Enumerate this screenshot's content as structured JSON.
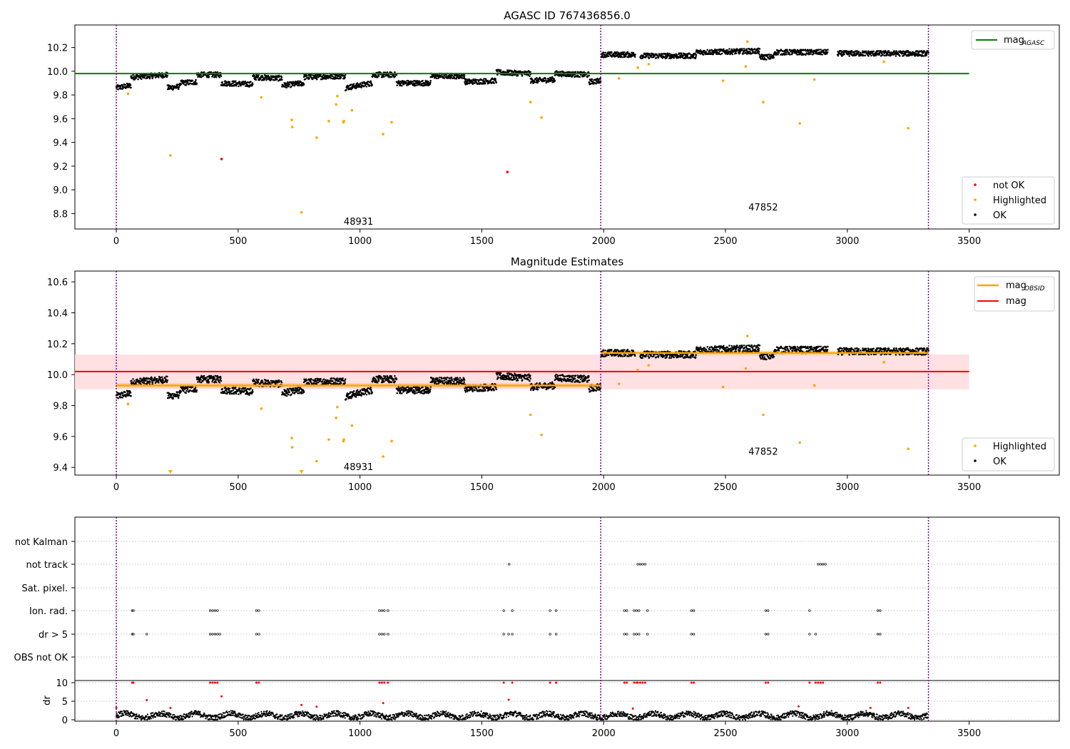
{
  "chart_data": [
    {
      "type": "scatter",
      "title": "AGASC ID 767436856.0",
      "xlabel": "",
      "ylabel": "",
      "xlim": [
        -170,
        3870
      ],
      "ylim": [
        8.67,
        10.39
      ],
      "x_ticks": [
        "0",
        "500",
        "1000",
        "1500",
        "2000",
        "2500",
        "3000",
        "3500"
      ],
      "x_tick_values": [
        0,
        500,
        1000,
        1500,
        2000,
        2500,
        3000,
        3500
      ],
      "y_ticks": [
        "8.8",
        "9.0",
        "9.2",
        "9.4",
        "9.6",
        "9.8",
        "10.0",
        "10.2"
      ],
      "y_tick_values": [
        8.8,
        9.0,
        9.2,
        9.4,
        9.6,
        9.8,
        10.0,
        10.2
      ],
      "obs_boundaries": [
        0,
        1988,
        3333
      ],
      "obs_labels": [
        {
          "text": "48931",
          "x": 994,
          "y": 8.73
        },
        {
          "text": "47852",
          "x": 2655,
          "y": 8.85
        }
      ],
      "lines": [
        {
          "name": "mag_AGASC",
          "color": "#008000",
          "x": [
            -170,
            3500
          ],
          "y": [
            9.98,
            9.98
          ]
        }
      ],
      "ok_segments": [
        {
          "x": [
            0,
            60
          ],
          "y": [
            9.86,
            9.88
          ]
        },
        {
          "x": [
            60,
            210
          ],
          "y": [
            9.95,
            9.97
          ]
        },
        {
          "x": [
            210,
            260
          ],
          "y": [
            9.86,
            9.87
          ]
        },
        {
          "x": [
            260,
            330
          ],
          "y": [
            9.9,
            9.91
          ]
        },
        {
          "x": [
            330,
            430
          ],
          "y": [
            9.97,
            9.97
          ]
        },
        {
          "x": [
            430,
            560
          ],
          "y": [
            9.9,
            9.89
          ]
        },
        {
          "x": [
            560,
            680
          ],
          "y": [
            9.95,
            9.94
          ]
        },
        {
          "x": [
            680,
            770
          ],
          "y": [
            9.88,
            9.9
          ]
        },
        {
          "x": [
            770,
            940
          ],
          "y": [
            9.95,
            9.96
          ]
        },
        {
          "x": [
            940,
            1050
          ],
          "y": [
            9.86,
            9.9
          ]
        },
        {
          "x": [
            1050,
            1150
          ],
          "y": [
            9.97,
            9.97
          ]
        },
        {
          "x": [
            1150,
            1290
          ],
          "y": [
            9.9,
            9.9
          ]
        },
        {
          "x": [
            1290,
            1430
          ],
          "y": [
            9.96,
            9.96
          ]
        },
        {
          "x": [
            1430,
            1560
          ],
          "y": [
            9.91,
            9.92
          ]
        },
        {
          "x": [
            1560,
            1700
          ],
          "y": [
            9.99,
            9.98
          ]
        },
        {
          "x": [
            1700,
            1800
          ],
          "y": [
            9.92,
            9.93
          ]
        },
        {
          "x": [
            1800,
            1940
          ],
          "y": [
            9.98,
            9.97
          ]
        },
        {
          "x": [
            1940,
            1988
          ],
          "y": [
            9.91,
            9.92
          ]
        },
        {
          "x": [
            1990,
            2130
          ],
          "y": [
            10.14,
            10.14
          ]
        },
        {
          "x": [
            2150,
            2380
          ],
          "y": [
            10.13,
            10.13
          ]
        },
        {
          "x": [
            2380,
            2640
          ],
          "y": [
            10.16,
            10.17
          ]
        },
        {
          "x": [
            2640,
            2700
          ],
          "y": [
            10.12,
            10.12
          ]
        },
        {
          "x": [
            2700,
            2920
          ],
          "y": [
            10.16,
            10.16
          ]
        },
        {
          "x": [
            2960,
            3333
          ],
          "y": [
            10.15,
            10.15
          ]
        }
      ],
      "highlighted": {
        "color": "#ffa500",
        "x": [
          48,
          222,
          595,
          720,
          722,
          760,
          822,
          872,
          902,
          907,
          932,
          934,
          967,
          1095,
          1130,
          1700,
          1745,
          2063,
          2140,
          2185,
          2490,
          2583,
          2590,
          2655,
          2805,
          2865,
          3150,
          3250
        ],
        "y": [
          9.81,
          9.29,
          9.78,
          9.59,
          9.53,
          8.81,
          9.44,
          9.58,
          9.72,
          9.79,
          9.57,
          9.58,
          9.67,
          9.47,
          9.57,
          9.74,
          9.61,
          9.94,
          10.03,
          10.06,
          9.92,
          10.04,
          10.25,
          9.74,
          9.56,
          9.93,
          10.08,
          9.52
        ]
      },
      "not_ok": {
        "color": "#ff0000",
        "x": [
          432,
          1605
        ],
        "y": [
          9.26,
          9.15
        ]
      },
      "legend": {
        "placement": "upper-right",
        "label_html": "mag",
        "label_sub": "AGASC"
      },
      "legend2": {
        "placement": "lower-right",
        "entries": [
          "not OK",
          "Highlighted",
          "OK"
        ]
      },
      "grid": false
    },
    {
      "type": "scatter",
      "title": "Magnitude Estimates",
      "xlim": [
        -170,
        3870
      ],
      "ylim": [
        9.35,
        10.67
      ],
      "x_ticks": [
        "0",
        "500",
        "1000",
        "1500",
        "2000",
        "2500",
        "3000",
        "3500"
      ],
      "x_tick_values": [
        0,
        500,
        1000,
        1500,
        2000,
        2500,
        3000,
        3500
      ],
      "y_ticks": [
        "9.4",
        "9.6",
        "9.8",
        "10.0",
        "10.2",
        "10.4",
        "10.6"
      ],
      "y_tick_values": [
        9.4,
        9.6,
        9.8,
        10.0,
        10.2,
        10.4,
        10.6
      ],
      "obs_boundaries": [
        0,
        1988,
        3333
      ],
      "obs_labels": [
        {
          "text": "48931",
          "x": 994,
          "y": 9.4
        },
        {
          "text": "47852",
          "x": 2655,
          "y": 9.5
        }
      ],
      "mag_band": {
        "x": [
          -170,
          3500
        ],
        "low": 9.905,
        "high": 10.13,
        "color": "#ffdde0"
      },
      "lines": [
        {
          "name": "mag",
          "color": "#ff0000",
          "x": [
            -170,
            3500
          ],
          "y": [
            10.02,
            10.02
          ]
        },
        {
          "name": "mag_OBSID",
          "color": "#ffa500",
          "x": [
            0,
            1988
          ],
          "y": [
            9.93,
            9.93
          ]
        },
        {
          "name": "mag_OBSID",
          "color": "#ffa500",
          "x": [
            1990,
            3333
          ],
          "y": [
            10.14,
            10.14
          ]
        }
      ],
      "obsid_bands": [
        {
          "x": [
            0,
            1988
          ],
          "low": 9.915,
          "high": 9.945
        },
        {
          "x": [
            1990,
            3333
          ],
          "low": 10.125,
          "high": 10.155
        }
      ],
      "ok_segments": [
        {
          "x": [
            0,
            60
          ],
          "y": [
            9.86,
            9.88
          ]
        },
        {
          "x": [
            60,
            210
          ],
          "y": [
            9.95,
            9.97
          ]
        },
        {
          "x": [
            210,
            260
          ],
          "y": [
            9.86,
            9.87
          ]
        },
        {
          "x": [
            260,
            330
          ],
          "y": [
            9.9,
            9.91
          ]
        },
        {
          "x": [
            330,
            430
          ],
          "y": [
            9.97,
            9.97
          ]
        },
        {
          "x": [
            430,
            560
          ],
          "y": [
            9.9,
            9.89
          ]
        },
        {
          "x": [
            560,
            680
          ],
          "y": [
            9.95,
            9.94
          ]
        },
        {
          "x": [
            680,
            770
          ],
          "y": [
            9.88,
            9.9
          ]
        },
        {
          "x": [
            770,
            940
          ],
          "y": [
            9.95,
            9.96
          ]
        },
        {
          "x": [
            940,
            1050
          ],
          "y": [
            9.86,
            9.9
          ]
        },
        {
          "x": [
            1050,
            1150
          ],
          "y": [
            9.97,
            9.97
          ]
        },
        {
          "x": [
            1150,
            1290
          ],
          "y": [
            9.9,
            9.9
          ]
        },
        {
          "x": [
            1290,
            1430
          ],
          "y": [
            9.96,
            9.96
          ]
        },
        {
          "x": [
            1430,
            1560
          ],
          "y": [
            9.91,
            9.92
          ]
        },
        {
          "x": [
            1560,
            1700
          ],
          "y": [
            9.99,
            9.98
          ]
        },
        {
          "x": [
            1700,
            1800
          ],
          "y": [
            9.92,
            9.93
          ]
        },
        {
          "x": [
            1800,
            1940
          ],
          "y": [
            9.98,
            9.97
          ]
        },
        {
          "x": [
            1940,
            1988
          ],
          "y": [
            9.91,
            9.92
          ]
        },
        {
          "x": [
            1990,
            2130
          ],
          "y": [
            10.14,
            10.14
          ]
        },
        {
          "x": [
            2150,
            2380
          ],
          "y": [
            10.13,
            10.13
          ]
        },
        {
          "x": [
            2380,
            2640
          ],
          "y": [
            10.16,
            10.17
          ]
        },
        {
          "x": [
            2640,
            2700
          ],
          "y": [
            10.12,
            10.12
          ]
        },
        {
          "x": [
            2700,
            2920
          ],
          "y": [
            10.16,
            10.16
          ]
        },
        {
          "x": [
            2960,
            3333
          ],
          "y": [
            10.15,
            10.15
          ]
        }
      ],
      "highlighted": {
        "color": "#ffa500",
        "x": [
          48,
          595,
          720,
          722,
          822,
          872,
          902,
          907,
          932,
          934,
          967,
          1095,
          1130,
          1700,
          1745,
          2063,
          2140,
          2185,
          2490,
          2583,
          2590,
          2655,
          2805,
          2865,
          3150,
          3250
        ],
        "y": [
          9.81,
          9.78,
          9.59,
          9.53,
          9.44,
          9.58,
          9.72,
          9.79,
          9.57,
          9.58,
          9.67,
          9.47,
          9.57,
          9.74,
          9.61,
          9.94,
          10.03,
          10.06,
          9.92,
          10.04,
          10.25,
          9.74,
          9.56,
          9.93,
          10.08,
          9.52
        ]
      },
      "offscale_markers": {
        "color": "#ffa500",
        "x": [
          222,
          760
        ]
      },
      "legend": {
        "placement": "upper-right",
        "entries": [
          {
            "label": "mag",
            "sub": "OBSID",
            "color": "#ffa500"
          },
          {
            "label": "mag",
            "sub": "",
            "color": "#ff0000"
          }
        ]
      },
      "legend2": {
        "placement": "lower-right",
        "entries": [
          "Highlighted",
          "OK"
        ]
      },
      "grid": false
    },
    {
      "type": "scatter",
      "title": "",
      "xlim": [
        -170,
        3870
      ],
      "x_ticks": [
        "0",
        "500",
        "1000",
        "1500",
        "2000",
        "2500",
        "3000",
        "3500"
      ],
      "x_tick_values": [
        0,
        500,
        1000,
        1500,
        2000,
        2500,
        3000,
        3500
      ],
      "flag_rows": [
        "not Kalman",
        "not track",
        "Sat. pixel.",
        "Ion. rad.",
        "dr > 5",
        "OBS not OK"
      ],
      "flag_points": {
        "not track": [
          1612,
          2140,
          2150,
          2160,
          2170,
          2880,
          2890,
          2900,
          2910
        ],
        "Ion. rad.": [
          65,
          70,
          385,
          395,
          405,
          415,
          575,
          585,
          1080,
          1090,
          1100,
          1115,
          1590,
          1625,
          1780,
          1805,
          2085,
          2095,
          2125,
          2135,
          2145,
          2180,
          2360,
          2370,
          2665,
          2675,
          2845,
          3125,
          3135
        ],
        "dr > 5": [
          65,
          70,
          125,
          385,
          395,
          405,
          415,
          425,
          575,
          585,
          1080,
          1090,
          1100,
          1115,
          1590,
          1610,
          1625,
          1780,
          1805,
          2085,
          2095,
          2125,
          2135,
          2145,
          2180,
          2360,
          2370,
          2665,
          2675,
          2845,
          2870,
          3125,
          3135
        ]
      },
      "dr_ylabel": "dr",
      "dr_ticks": [
        "0",
        "5",
        "10"
      ],
      "dr_tick_values": [
        0,
        5,
        10
      ],
      "dr_ylim": [
        -0.5,
        10.5
      ],
      "dr_red": {
        "color": "#ff0000",
        "x": [
          0,
          65,
          70,
          125,
          222,
          385,
          395,
          405,
          415,
          432,
          575,
          585,
          760,
          822,
          1080,
          1090,
          1095,
          1100,
          1115,
          1590,
          1610,
          1625,
          1780,
          1805,
          2085,
          2095,
          2120,
          2125,
          2135,
          2140,
          2150,
          2160,
          2170,
          2360,
          2370,
          2665,
          2675,
          2800,
          2845,
          2870,
          2880,
          2890,
          2900,
          3095,
          3125,
          3135,
          3250
        ],
        "y": [
          3.2,
          10,
          10,
          5.3,
          3.2,
          10,
          10,
          10,
          10,
          6.3,
          10,
          10,
          4.0,
          3.5,
          10,
          10,
          4.5,
          10,
          10,
          10,
          5.4,
          10,
          10,
          10,
          10,
          10,
          3.0,
          10,
          10,
          10,
          10,
          10,
          10,
          10,
          10,
          10,
          10,
          3.6,
          10,
          10,
          10,
          10,
          10,
          3.2,
          10,
          10,
          3.2
        ]
      },
      "dr_black_baseline": {
        "x": [
          0,
          3333
        ],
        "typical": 1.1,
        "spread": 1.5
      },
      "obs_boundaries": [
        0,
        1988,
        3333
      ],
      "grid": "horizontal-dotted"
    }
  ],
  "colors": {
    "ok": "#000000",
    "highlighted": "#ffa500",
    "not_ok": "#ff0000",
    "agasc_line": "#008000",
    "mag_line": "#ff0000",
    "obsid_line": "#ffa500",
    "boundary": "#800080"
  }
}
